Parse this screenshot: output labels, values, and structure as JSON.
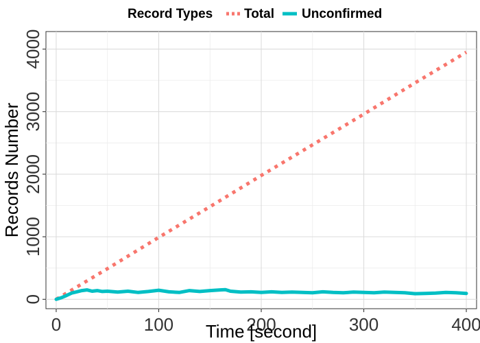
{
  "chart_data": {
    "type": "line",
    "xlabel": "Time [second]",
    "ylabel": "Records Number",
    "xlim": [
      -10,
      410
    ],
    "ylim": [
      -150,
      4280
    ],
    "x_ticks": [
      0,
      100,
      200,
      300,
      400
    ],
    "x_tick_labels": [
      "0",
      "100",
      "200",
      "300",
      "400"
    ],
    "y_ticks": [
      0,
      1000,
      2000,
      3000,
      4000
    ],
    "y_tick_labels": [
      "0",
      "1000",
      "2000",
      "3000",
      "4000"
    ],
    "grid": true,
    "legend": {
      "title": "Record Types",
      "placement": "top",
      "entries": [
        "Total",
        "Unconfirmed"
      ]
    },
    "series": [
      {
        "name": "Total",
        "color": "#F8766D",
        "style": "dotted",
        "x": [
          0,
          50,
          100,
          150,
          200,
          250,
          300,
          350,
          400
        ],
        "y": [
          0,
          490,
          990,
          1480,
          1980,
          2470,
          2960,
          3460,
          3950
        ]
      },
      {
        "name": "Unconfirmed",
        "color": "#00BFC4",
        "style": "solid",
        "x": [
          0,
          5,
          10,
          15,
          20,
          25,
          30,
          35,
          40,
          45,
          50,
          60,
          70,
          80,
          90,
          100,
          110,
          120,
          130,
          140,
          150,
          160,
          165,
          170,
          180,
          190,
          200,
          210,
          220,
          230,
          240,
          250,
          260,
          270,
          280,
          290,
          300,
          310,
          320,
          330,
          340,
          350,
          360,
          370,
          380,
          390,
          400
        ],
        "y": [
          0,
          25,
          60,
          100,
          120,
          140,
          150,
          130,
          140,
          125,
          130,
          115,
          130,
          110,
          125,
          145,
          120,
          110,
          140,
          125,
          140,
          150,
          155,
          130,
          115,
          120,
          110,
          120,
          110,
          115,
          110,
          105,
          120,
          110,
          105,
          115,
          110,
          105,
          115,
          110,
          105,
          90,
          95,
          100,
          110,
          105,
          95
        ]
      }
    ]
  }
}
